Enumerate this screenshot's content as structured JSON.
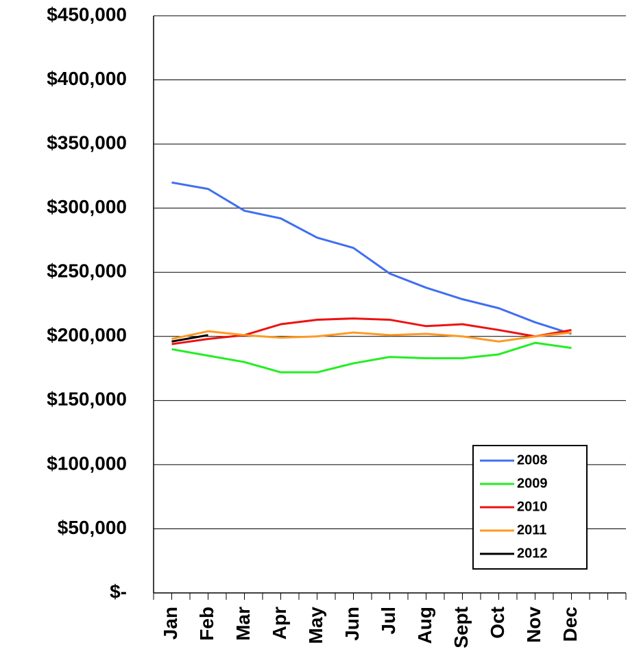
{
  "chart_data": {
    "type": "line",
    "categories": [
      "Jan",
      "Feb",
      "Mar",
      "Apr",
      "May",
      "Jun",
      "Jul",
      "Aug",
      "Sept",
      "Oct",
      "Nov",
      "Dec",
      null
    ],
    "series": [
      {
        "name": "2008",
        "color": "#3f6ff0",
        "values": [
          320000,
          315000,
          298000,
          292000,
          277000,
          269000,
          249000,
          238000,
          229000,
          222000,
          211000,
          202000,
          null
        ]
      },
      {
        "name": "2009",
        "color": "#22ee22",
        "values": [
          190000,
          185000,
          180000,
          172000,
          172000,
          179000,
          184000,
          183000,
          183000,
          186000,
          195000,
          191000,
          null
        ]
      },
      {
        "name": "2010",
        "color": "#ee1111",
        "values": [
          194000,
          198000,
          201000,
          209500,
          213000,
          214000,
          213000,
          208000,
          209500,
          205000,
          200000,
          205000,
          null
        ]
      },
      {
        "name": "2011",
        "color": "#ff9922",
        "values": [
          198000,
          204000,
          201000,
          199000,
          200000,
          203000,
          201000,
          202000,
          200000,
          196000,
          200000,
          203000,
          null
        ]
      },
      {
        "name": "2012",
        "color": "#000000",
        "values": [
          196000,
          201000,
          null,
          null,
          null,
          null,
          null,
          null,
          null,
          null,
          null,
          null,
          null
        ]
      }
    ],
    "ylim": [
      0,
      450000
    ],
    "yticks": [
      {
        "value": 0,
        "label": "$-"
      },
      {
        "value": 50000,
        "label": "$50,000"
      },
      {
        "value": 100000,
        "label": "$100,000"
      },
      {
        "value": 150000,
        "label": "$150,000"
      },
      {
        "value": 200000,
        "label": "$200,000"
      },
      {
        "value": 250000,
        "label": "$250,000"
      },
      {
        "value": 300000,
        "label": "$300,000"
      },
      {
        "value": 350000,
        "label": "$350,000"
      },
      {
        "value": 400000,
        "label": "$400,000"
      },
      {
        "value": 450000,
        "label": "$450,000"
      }
    ],
    "grid": true,
    "legend": "lower-right"
  }
}
